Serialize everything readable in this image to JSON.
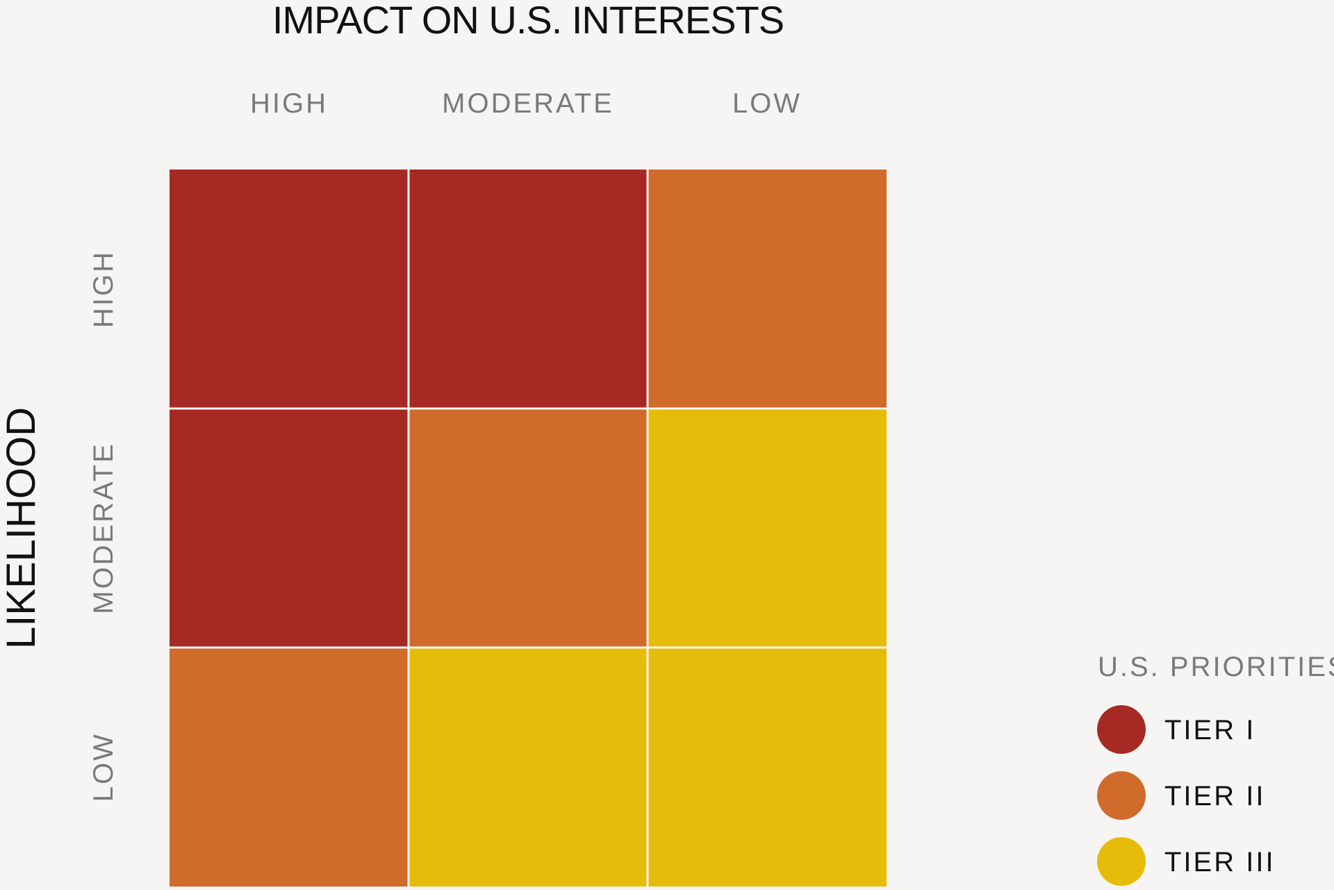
{
  "chart_data": {
    "type": "heatmap",
    "title": "IMPACT ON U.S. INTERESTS",
    "xlabel": "IMPACT ON U.S. INTERESTS",
    "ylabel": "LIKELIHOOD",
    "x_categories": [
      "HIGH",
      "MODERATE",
      "LOW"
    ],
    "y_categories": [
      "HIGH",
      "MODERATE",
      "LOW"
    ],
    "cells": [
      [
        "TIER I",
        "TIER I",
        "TIER II"
      ],
      [
        "TIER I",
        "TIER II",
        "TIER III"
      ],
      [
        "TIER II",
        "TIER III",
        "TIER III"
      ]
    ],
    "legend": {
      "title": "U.S. PRIORITIES",
      "placement": "bottom-right",
      "items": [
        {
          "label": "TIER I",
          "color": "#a62a23"
        },
        {
          "label": "TIER II",
          "color": "#d06b2b"
        },
        {
          "label": "TIER III",
          "color": "#e6bc0a"
        }
      ]
    }
  }
}
